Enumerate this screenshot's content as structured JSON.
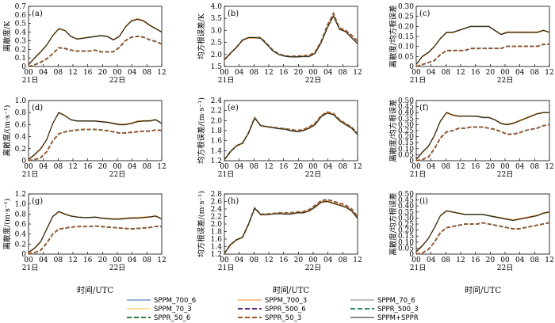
{
  "chart_data": {
    "type": "line",
    "x_tick_labels": [
      "00",
      "04",
      "08",
      "12",
      "16",
      "20",
      "00",
      "04",
      "08",
      "12"
    ],
    "date_labels": [
      "21日",
      "22日"
    ],
    "xlabel": "时间/UTC",
    "legend": [
      {
        "name": "SPPM_700_6",
        "color": "#2f5fbf",
        "dash": "solid"
      },
      {
        "name": "SPPM_700_3",
        "color": "#f08a24",
        "dash": "solid"
      },
      {
        "name": "SPPM_70_6",
        "color": "#7f7f7f",
        "dash": "solid"
      },
      {
        "name": "SPPM_70_3",
        "color": "#f2c230",
        "dash": "solid"
      },
      {
        "name": "SPPR_500_6",
        "color": "#6a2480",
        "dash": "dashed"
      },
      {
        "name": "SPPR_500_3",
        "color": "#2e8b57",
        "dash": "dashed"
      },
      {
        "name": "SPPR_50_6",
        "color": "#2f7a3a",
        "dash": "dashed"
      },
      {
        "name": "SPPR_50_3",
        "color": "#a0522d",
        "dash": "dashed"
      },
      {
        "name": "SPPM+SPPR",
        "color": "#1a1a1a",
        "dash": "solid"
      }
    ],
    "panels": [
      {
        "label": "(a)",
        "ylabel": "离散度/K",
        "ylim": [
          0,
          0.7
        ],
        "yticks": [
          "0",
          "0.1",
          "0.2",
          "0.3",
          "0.4",
          "0.5",
          "0.6",
          "0.7"
        ],
        "sppm": [
          0.02,
          0.1,
          0.17,
          0.25,
          0.36,
          0.44,
          0.42,
          0.35,
          0.32,
          0.33,
          0.34,
          0.35,
          0.36,
          0.35,
          0.31,
          0.35,
          0.46,
          0.53,
          0.55,
          0.53,
          0.48,
          0.44,
          0.4
        ],
        "sppr": [
          0.0,
          0.02,
          0.05,
          0.09,
          0.15,
          0.22,
          0.21,
          0.19,
          0.18,
          0.18,
          0.18,
          0.19,
          0.17,
          0.17,
          0.17,
          0.22,
          0.3,
          0.34,
          0.35,
          0.34,
          0.31,
          0.29,
          0.26
        ]
      },
      {
        "label": "(b)",
        "ylabel": "均方根误差/K",
        "ylim": [
          1.5,
          4.0
        ],
        "yticks": [
          "1.5",
          "2.0",
          "2.5",
          "3.0",
          "3.5",
          "4.0"
        ],
        "sppm": [
          1.78,
          2.05,
          2.3,
          2.6,
          2.7,
          2.7,
          2.68,
          2.42,
          2.15,
          2.0,
          1.93,
          1.9,
          1.9,
          1.92,
          1.92,
          2.05,
          2.5,
          3.1,
          3.6,
          3.05,
          2.95,
          2.7,
          2.45
        ],
        "sppr": [
          1.78,
          2.05,
          2.3,
          2.6,
          2.7,
          2.7,
          2.7,
          2.45,
          2.18,
          2.02,
          1.95,
          1.92,
          1.93,
          1.95,
          1.96,
          2.1,
          2.55,
          3.2,
          3.7,
          3.1,
          3.0,
          2.8,
          2.55
        ]
      },
      {
        "label": "(c)",
        "ylabel": "离散度/均方根误差",
        "ylim": [
          0,
          0.3
        ],
        "yticks": [
          "0",
          "0.05",
          "0.10",
          "0.15",
          "0.20",
          "0.25",
          "0.30"
        ],
        "sppm": [
          0.01,
          0.05,
          0.07,
          0.1,
          0.14,
          0.17,
          0.17,
          0.18,
          0.19,
          0.2,
          0.2,
          0.2,
          0.2,
          0.18,
          0.16,
          0.17,
          0.17,
          0.17,
          0.17,
          0.17,
          0.17,
          0.18,
          0.17
        ],
        "sppr": [
          0.0,
          0.01,
          0.02,
          0.03,
          0.06,
          0.08,
          0.08,
          0.08,
          0.08,
          0.09,
          0.09,
          0.09,
          0.09,
          0.09,
          0.09,
          0.1,
          0.1,
          0.1,
          0.1,
          0.1,
          0.1,
          0.11,
          0.11
        ]
      },
      {
        "label": "(d)",
        "ylabel": "离散度/(m·s⁻¹)",
        "ylim": [
          0,
          1.0
        ],
        "yticks": [
          "0",
          "0.2",
          "0.4",
          "0.6",
          "0.8",
          "1.0"
        ],
        "sppm": [
          0.02,
          0.1,
          0.2,
          0.35,
          0.62,
          0.8,
          0.75,
          0.68,
          0.66,
          0.66,
          0.66,
          0.66,
          0.65,
          0.64,
          0.62,
          0.6,
          0.6,
          0.62,
          0.65,
          0.66,
          0.66,
          0.68,
          0.62
        ],
        "sppr": [
          0.0,
          0.02,
          0.05,
          0.15,
          0.33,
          0.45,
          0.48,
          0.5,
          0.51,
          0.52,
          0.52,
          0.52,
          0.51,
          0.5,
          0.48,
          0.46,
          0.46,
          0.47,
          0.48,
          0.49,
          0.49,
          0.51,
          0.5
        ]
      },
      {
        "label": "(e)",
        "ylabel": "均方根误差/(m·s⁻¹)",
        "ylim": [
          1.2,
          2.4
        ],
        "yticks": [
          "1.2",
          "1.4",
          "1.6",
          "1.8",
          "2.0",
          "2.2",
          "2.4"
        ],
        "sppm": [
          1.22,
          1.38,
          1.5,
          1.55,
          1.75,
          2.05,
          1.9,
          1.88,
          1.86,
          1.84,
          1.83,
          1.8,
          1.78,
          1.8,
          1.85,
          1.92,
          2.08,
          2.15,
          2.12,
          2.0,
          1.92,
          1.85,
          1.72
        ],
        "sppr": [
          1.22,
          1.38,
          1.5,
          1.55,
          1.76,
          2.06,
          1.9,
          1.88,
          1.87,
          1.85,
          1.84,
          1.82,
          1.8,
          1.82,
          1.87,
          1.95,
          2.1,
          2.17,
          2.14,
          2.02,
          1.94,
          1.87,
          1.74
        ]
      },
      {
        "label": "(f)",
        "ylabel": "离散度/均方根误差",
        "ylim": [
          0,
          0.5
        ],
        "yticks": [
          "0",
          "0.05",
          "0.10",
          "0.15",
          "0.20",
          "0.25",
          "0.30",
          "0.35",
          "0.40",
          "0.45",
          "0.50"
        ],
        "sppm": [
          0.01,
          0.07,
          0.12,
          0.21,
          0.33,
          0.4,
          0.38,
          0.37,
          0.37,
          0.37,
          0.37,
          0.36,
          0.36,
          0.34,
          0.31,
          0.3,
          0.31,
          0.33,
          0.35,
          0.37,
          0.39,
          0.4,
          0.4
        ],
        "sppr": [
          0.0,
          0.01,
          0.03,
          0.1,
          0.19,
          0.24,
          0.25,
          0.27,
          0.27,
          0.28,
          0.28,
          0.28,
          0.27,
          0.26,
          0.24,
          0.22,
          0.22,
          0.23,
          0.25,
          0.26,
          0.27,
          0.29,
          0.3
        ]
      },
      {
        "label": "(g)",
        "ylabel": "离散度/(m·s⁻¹)",
        "ylim": [
          0,
          1.2
        ],
        "yticks": [
          "0",
          "0.2",
          "0.4",
          "0.6",
          "0.8",
          "1.0",
          "1.2"
        ],
        "sppm": [
          0.03,
          0.12,
          0.25,
          0.5,
          0.75,
          0.85,
          0.8,
          0.76,
          0.74,
          0.73,
          0.73,
          0.74,
          0.72,
          0.71,
          0.7,
          0.7,
          0.71,
          0.72,
          0.72,
          0.73,
          0.74,
          0.76,
          0.7
        ],
        "sppr": [
          0.0,
          0.03,
          0.08,
          0.22,
          0.4,
          0.5,
          0.52,
          0.54,
          0.55,
          0.55,
          0.55,
          0.56,
          0.55,
          0.54,
          0.53,
          0.52,
          0.51,
          0.5,
          0.51,
          0.52,
          0.53,
          0.55,
          0.55
        ]
      },
      {
        "label": "(h)",
        "ylabel": "均方根误差/(m·s⁻¹)",
        "ylim": [
          1.2,
          2.8
        ],
        "yticks": [
          "1.2",
          "1.4",
          "1.6",
          "1.8",
          "2.0",
          "2.2",
          "2.4",
          "2.6",
          "2.8"
        ],
        "sppm": [
          1.22,
          1.45,
          1.58,
          1.65,
          2.0,
          2.42,
          2.25,
          2.25,
          2.27,
          2.28,
          2.27,
          2.27,
          2.3,
          2.3,
          2.35,
          2.45,
          2.58,
          2.6,
          2.55,
          2.5,
          2.45,
          2.35,
          2.15
        ],
        "sppr": [
          1.22,
          1.45,
          1.58,
          1.65,
          2.0,
          2.43,
          2.26,
          2.27,
          2.28,
          2.3,
          2.3,
          2.3,
          2.32,
          2.33,
          2.38,
          2.5,
          2.62,
          2.65,
          2.6,
          2.55,
          2.5,
          2.4,
          2.2
        ]
      },
      {
        "label": "(i)",
        "ylabel": "离散度/均方根误差",
        "ylim": [
          0,
          0.5
        ],
        "yticks": [
          "0",
          "0.05",
          "0.10",
          "0.15",
          "0.20",
          "0.25",
          "0.30",
          "0.35",
          "0.40",
          "0.45",
          "0.50"
        ],
        "sppm": [
          0.02,
          0.07,
          0.13,
          0.22,
          0.32,
          0.36,
          0.35,
          0.34,
          0.33,
          0.33,
          0.33,
          0.33,
          0.32,
          0.31,
          0.3,
          0.29,
          0.28,
          0.29,
          0.3,
          0.31,
          0.32,
          0.34,
          0.35
        ],
        "sppr": [
          0.0,
          0.01,
          0.04,
          0.1,
          0.18,
          0.22,
          0.23,
          0.24,
          0.25,
          0.25,
          0.25,
          0.26,
          0.25,
          0.24,
          0.23,
          0.22,
          0.21,
          0.21,
          0.22,
          0.23,
          0.24,
          0.25,
          0.26
        ]
      }
    ]
  }
}
